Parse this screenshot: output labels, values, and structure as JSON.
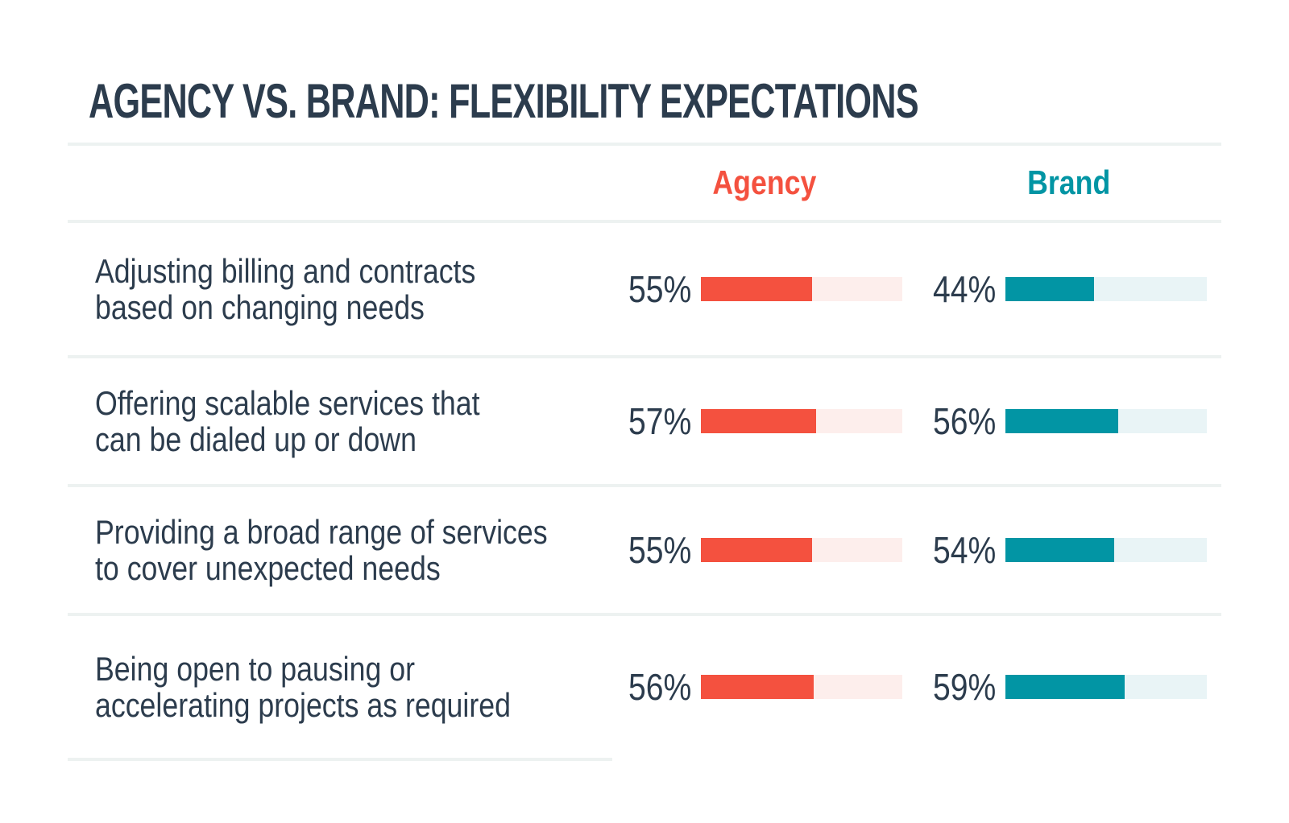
{
  "title": "AGENCY VS. BRAND: FLEXIBILITY EXPECTATIONS",
  "colors": {
    "background": "#ffffff",
    "text": "#2c3c4d",
    "divider": "#edf2f1",
    "agency": "#f4513f",
    "agency_track": "#fdeeec",
    "brand": "#0295a4",
    "brand_track": "#e9f4f6"
  },
  "header": {
    "agency_label": "Agency",
    "brand_label": "Brand"
  },
  "rows": [
    {
      "label_line1": "Adjusting billing and contracts",
      "label_line2": "based on changing needs",
      "agency": {
        "pct_label": "55%",
        "value": 55
      },
      "brand": {
        "pct_label": "44%",
        "value": 44
      }
    },
    {
      "label_line1": "Offering scalable services that",
      "label_line2": "can be dialed up or down",
      "agency": {
        "pct_label": "57%",
        "value": 57
      },
      "brand": {
        "pct_label": "56%",
        "value": 56
      }
    },
    {
      "label_line1": "Providing a broad range of services",
      "label_line2": "to cover unexpected needs",
      "agency": {
        "pct_label": "55%",
        "value": 55
      },
      "brand": {
        "pct_label": "54%",
        "value": 54
      }
    },
    {
      "label_line1": "Being open to pausing or",
      "label_line2": "accelerating projects as required",
      "agency": {
        "pct_label": "56%",
        "value": 56
      },
      "brand": {
        "pct_label": "59%",
        "value": 59
      }
    }
  ],
  "chart_data": {
    "type": "bar",
    "orientation": "horizontal",
    "title": "AGENCY VS. BRAND: FLEXIBILITY EXPECTATIONS",
    "categories": [
      "Adjusting billing and contracts based on changing needs",
      "Offering scalable services that can be dialed up or down",
      "Providing a broad range of services to cover unexpected needs",
      "Being open to pausing or accelerating projects as required"
    ],
    "series": [
      {
        "name": "Agency",
        "values": [
          55,
          57,
          55,
          56
        ],
        "color": "#f4513f",
        "track_color": "#fdeeec"
      },
      {
        "name": "Brand",
        "values": [
          44,
          56,
          54,
          59
        ],
        "color": "#0295a4",
        "track_color": "#e9f4f6"
      }
    ],
    "value_format": "percent",
    "xlim": [
      0,
      100
    ],
    "grid": false,
    "legend_position": "top"
  }
}
